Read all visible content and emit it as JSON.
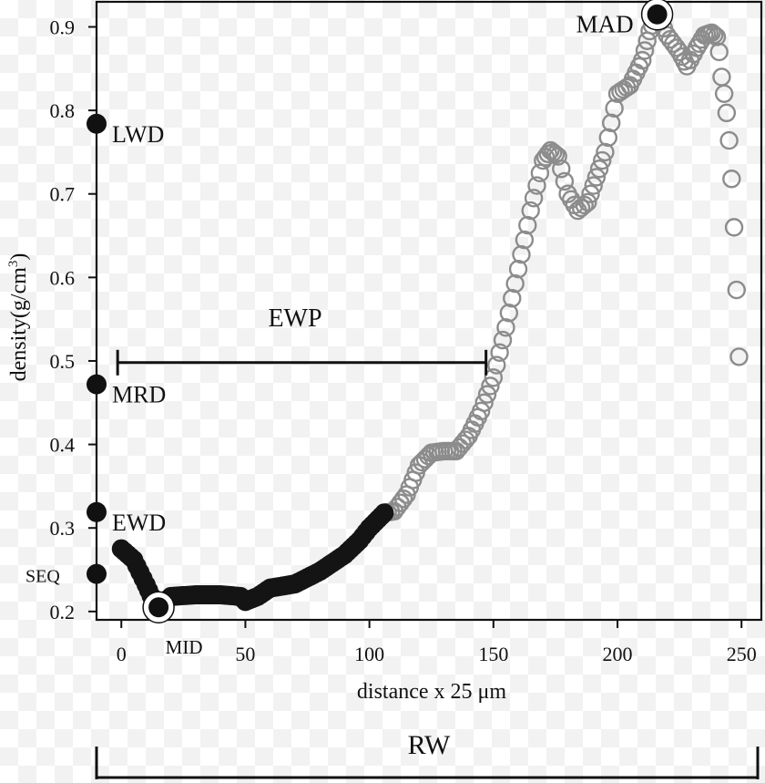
{
  "chart_data": {
    "type": "scatter",
    "xlabel": "distance x 25 μm",
    "ylabel_prefix": "density(g/cm",
    "ylabel_sup": "3",
    "ylabel_suffix": ")",
    "xlim": [
      -10,
      258
    ],
    "ylim": [
      0.19,
      0.93
    ],
    "x_ticks": [
      {
        "value": 0,
        "label": "0"
      },
      {
        "value": 50,
        "label": "50"
      },
      {
        "value": 100,
        "label": "100"
      },
      {
        "value": 150,
        "label": "150"
      },
      {
        "value": 200,
        "label": "200"
      },
      {
        "value": 250,
        "label": "250"
      }
    ],
    "y_ticks": [
      {
        "value": 0.2,
        "label": "0.2"
      },
      {
        "value": 0.3,
        "label": "0.3"
      },
      {
        "value": 0.4,
        "label": "0.4"
      },
      {
        "value": 0.5,
        "label": "0.5"
      },
      {
        "value": 0.6,
        "label": "0.6"
      },
      {
        "value": 0.7,
        "label": "0.7"
      },
      {
        "value": 0.8,
        "label": "0.8"
      },
      {
        "value": 0.9,
        "label": "0.9"
      }
    ],
    "earlywood_profile_knots": [
      [
        0,
        0.275
      ],
      [
        5,
        0.262
      ],
      [
        10,
        0.232
      ],
      [
        13,
        0.212
      ],
      [
        15,
        0.205
      ],
      [
        20,
        0.218
      ],
      [
        30,
        0.22
      ],
      [
        40,
        0.22
      ],
      [
        48,
        0.218
      ],
      [
        50,
        0.212
      ],
      [
        55,
        0.218
      ],
      [
        60,
        0.228
      ],
      [
        70,
        0.233
      ],
      [
        80,
        0.248
      ],
      [
        90,
        0.268
      ],
      [
        96,
        0.285
      ],
      [
        100,
        0.3
      ],
      [
        106,
        0.318
      ]
    ],
    "latewood_profile_knots": [
      [
        106,
        0.318
      ],
      [
        110,
        0.32
      ],
      [
        115,
        0.34
      ],
      [
        120,
        0.375
      ],
      [
        125,
        0.39
      ],
      [
        130,
        0.392
      ],
      [
        135,
        0.392
      ],
      [
        140,
        0.41
      ],
      [
        145,
        0.44
      ],
      [
        150,
        0.48
      ],
      [
        155,
        0.54
      ],
      [
        160,
        0.61
      ],
      [
        165,
        0.68
      ],
      [
        170,
        0.74
      ],
      [
        173,
        0.752
      ],
      [
        176,
        0.745
      ],
      [
        180,
        0.7
      ],
      [
        184,
        0.68
      ],
      [
        188,
        0.69
      ],
      [
        195,
        0.75
      ],
      [
        200,
        0.82
      ],
      [
        205,
        0.83
      ],
      [
        210,
        0.86
      ],
      [
        213,
        0.895
      ],
      [
        216,
        0.915
      ],
      [
        220,
        0.89
      ],
      [
        225,
        0.87
      ],
      [
        228,
        0.853
      ],
      [
        232,
        0.875
      ],
      [
        235,
        0.89
      ],
      [
        238,
        0.893
      ],
      [
        240,
        0.888
      ],
      [
        241,
        0.87
      ],
      [
        242,
        0.84
      ],
      [
        243,
        0.82
      ],
      [
        244,
        0.797
      ],
      [
        245,
        0.764
      ],
      [
        246,
        0.718
      ],
      [
        247,
        0.66
      ],
      [
        248,
        0.585
      ],
      [
        249,
        0.505
      ]
    ],
    "profile_spacing": 1.2,
    "axis_points": [
      {
        "name": "LWD",
        "label": "LWD",
        "value": 0.784
      },
      {
        "name": "MRD",
        "label": "MRD",
        "value": 0.472
      },
      {
        "name": "EWD",
        "label": "EWD",
        "value": 0.319
      },
      {
        "name": "SEQ",
        "label": "SEQ",
        "value": 0.245
      }
    ],
    "highlights": [
      {
        "name": "MID",
        "label": "MID",
        "x": 15,
        "y": 0.205
      },
      {
        "name": "MAD",
        "label": "MAD",
        "x": 216,
        "y": 0.915
      }
    ],
    "annotations": {
      "ewp": {
        "label": "EWP",
        "x_start": -1.5,
        "x_end": 147,
        "y": 0.498
      },
      "rw": {
        "label": "RW"
      }
    },
    "colors": {
      "earlywood": "#141414",
      "latewood": "#8c8c8c",
      "axis": "#111111"
    }
  }
}
